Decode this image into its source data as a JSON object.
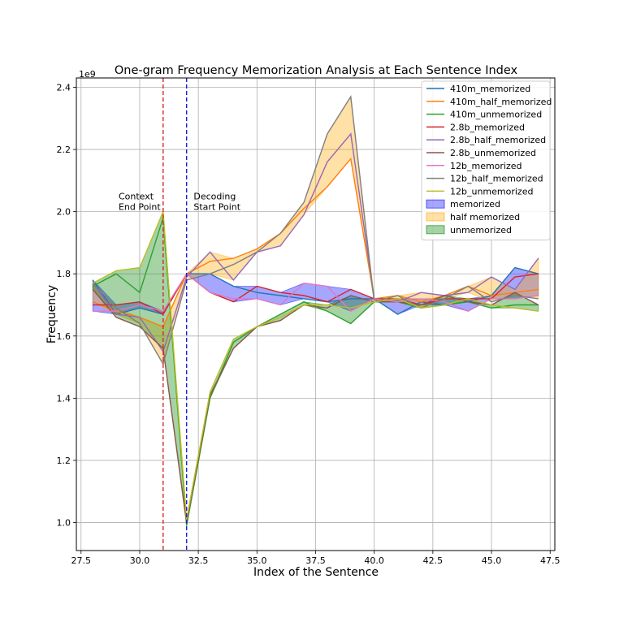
{
  "chart_data": {
    "type": "line",
    "title": "One-gram Frequency Memorization Analysis at Each Sentence Index",
    "xlabel": "Index of the Sentence",
    "ylabel": "Frequency",
    "y_offset_label": "1e9",
    "y_scale": 1000000000,
    "xlim": [
      27.3,
      47.7
    ],
    "ylim": [
      0.91,
      2.43
    ],
    "x_ticks": [
      27.5,
      30.0,
      32.5,
      35.0,
      37.5,
      40.0,
      42.5,
      45.0,
      47.5
    ],
    "x_tick_labels": [
      "27.5",
      "30.0",
      "32.5",
      "35.0",
      "37.5",
      "40.0",
      "42.5",
      "45.0",
      "47.5"
    ],
    "y_ticks": [
      1.0,
      1.2,
      1.4,
      1.6,
      1.8,
      2.0,
      2.2,
      2.4
    ],
    "y_tick_labels": [
      "1.0",
      "1.2",
      "1.4",
      "1.6",
      "1.8",
      "2.0",
      "2.2",
      "2.4"
    ],
    "grid": true,
    "legend_position": "top-right",
    "x": [
      28,
      29,
      30,
      31,
      32,
      33,
      34,
      35,
      36,
      37,
      38,
      39,
      40,
      41,
      42,
      43,
      44,
      45,
      46,
      47
    ],
    "series": [
      {
        "name": "410m_memorized",
        "color": "#1f77b4",
        "values": [
          1.78,
          1.67,
          1.69,
          1.67,
          1.8,
          1.8,
          1.76,
          1.74,
          1.73,
          1.72,
          1.71,
          1.72,
          1.72,
          1.67,
          1.71,
          1.7,
          1.71,
          1.73,
          1.82,
          1.8
        ]
      },
      {
        "name": "410m_half_memorized",
        "color": "#ff7f0e",
        "values": [
          1.71,
          1.68,
          1.66,
          1.63,
          1.8,
          1.84,
          1.85,
          1.88,
          1.93,
          2.01,
          2.08,
          2.17,
          1.72,
          1.73,
          1.71,
          1.73,
          1.76,
          1.73,
          1.74,
          1.75
        ]
      },
      {
        "name": "410m_unmemorized",
        "color": "#2ca02c",
        "values": [
          1.76,
          1.8,
          1.74,
          1.98,
          0.99,
          1.4,
          1.58,
          1.63,
          1.67,
          1.71,
          1.68,
          1.64,
          1.71,
          1.71,
          1.69,
          1.7,
          1.71,
          1.69,
          1.7,
          1.7
        ]
      },
      {
        "name": "2.8b_memorized",
        "color": "#d62728",
        "values": [
          1.7,
          1.7,
          1.71,
          1.67,
          1.8,
          1.74,
          1.71,
          1.76,
          1.74,
          1.73,
          1.71,
          1.75,
          1.72,
          1.72,
          1.7,
          1.72,
          1.72,
          1.72,
          1.79,
          1.8
        ]
      },
      {
        "name": "2.8b_half_memorized",
        "color": "#9467bd",
        "values": [
          1.77,
          1.67,
          1.66,
          1.55,
          1.79,
          1.87,
          1.78,
          1.87,
          1.89,
          1.99,
          2.16,
          2.25,
          1.72,
          1.71,
          1.74,
          1.73,
          1.74,
          1.79,
          1.75,
          1.85
        ]
      },
      {
        "name": "2.8b_unmemorized",
        "color": "#8c564b",
        "values": [
          1.75,
          1.66,
          1.63,
          1.56,
          1.0,
          1.41,
          1.56,
          1.63,
          1.65,
          1.7,
          1.69,
          1.73,
          1.71,
          1.71,
          1.7,
          1.73,
          1.71,
          1.7,
          1.74,
          1.7
        ]
      },
      {
        "name": "12b_memorized",
        "color": "#e377c2",
        "values": [
          1.68,
          1.68,
          1.7,
          1.68,
          1.8,
          1.74,
          1.72,
          1.72,
          1.7,
          1.77,
          1.76,
          1.68,
          1.72,
          1.71,
          1.72,
          1.71,
          1.68,
          1.72,
          1.72,
          1.73
        ]
      },
      {
        "name": "12b_half_memorized",
        "color": "#7f7f7f",
        "values": [
          1.77,
          1.69,
          1.64,
          1.51,
          1.78,
          1.8,
          1.83,
          1.87,
          1.93,
          2.03,
          2.25,
          2.37,
          1.71,
          1.73,
          1.69,
          1.72,
          1.76,
          1.71,
          1.73,
          1.72
        ]
      },
      {
        "name": "12b_unmemorized",
        "color": "#bcbd22",
        "values": [
          1.77,
          1.81,
          1.82,
          2.0,
          1.01,
          1.42,
          1.59,
          1.63,
          1.66,
          1.7,
          1.7,
          1.69,
          1.71,
          1.72,
          1.69,
          1.7,
          1.72,
          1.7,
          1.69,
          1.68
        ]
      }
    ],
    "bands": [
      {
        "name": "memorized",
        "color": "#0000ff",
        "opacity": 0.35,
        "series": [
          0,
          3,
          6
        ]
      },
      {
        "name": "half memorized",
        "color": "#ffa500",
        "opacity": 0.35,
        "series": [
          1,
          4,
          7
        ]
      },
      {
        "name": "unmemorized",
        "color": "#008000",
        "opacity": 0.35,
        "series": [
          2,
          5,
          8
        ]
      }
    ],
    "vlines": [
      {
        "x": 31,
        "color": "#d62728",
        "label_lines": [
          "Context",
          "End Point"
        ],
        "label_x": 29.1,
        "label_y": 2.04
      },
      {
        "x": 32,
        "color": "#1f1fd6",
        "label_lines": [
          "Decoding",
          "Start Point"
        ],
        "label_x": 32.3,
        "label_y": 2.04
      }
    ]
  }
}
